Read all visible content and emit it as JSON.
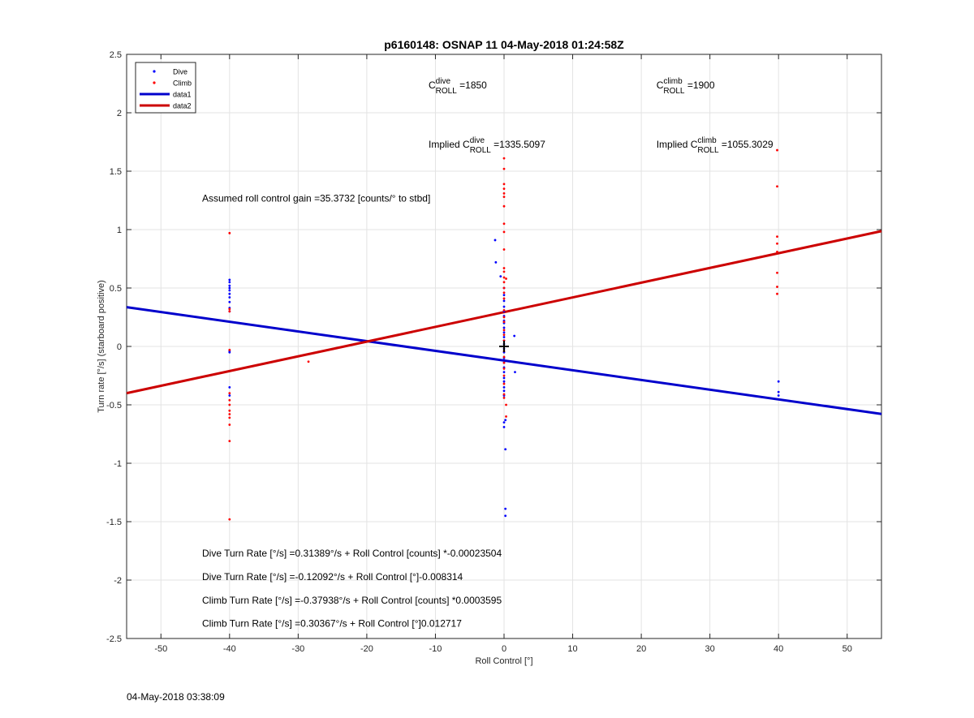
{
  "chart_data": {
    "type": "scatter",
    "title": "p6160148: OSNAP 11 04-May-2018 01:24:58Z",
    "xlabel": "Roll Control [°]",
    "ylabel": "Turn rate [°/s] (starboard positive)",
    "xlim": [
      -55,
      55
    ],
    "ylim": [
      -2.5,
      2.5
    ],
    "xticks": [
      -50,
      -40,
      -30,
      -20,
      -10,
      0,
      10,
      20,
      30,
      40,
      50
    ],
    "yticks": [
      -2.5,
      -2,
      -1.5,
      -1,
      -0.5,
      0,
      0.5,
      1,
      1.5,
      2,
      2.5
    ],
    "grid": true,
    "legend_position": "top-left",
    "legend": [
      {
        "label": "Dive",
        "kind": "marker",
        "color": "#0000ff"
      },
      {
        "label": "Climb",
        "kind": "marker",
        "color": "#ff0000"
      },
      {
        "label": "data1",
        "kind": "line",
        "color": "#0000cc"
      },
      {
        "label": "data2",
        "kind": "line",
        "color": "#cc0000"
      }
    ],
    "series": [
      {
        "name": "Dive",
        "color": "#0000ff",
        "points": [
          [
            -40,
            0.57
          ],
          [
            -40,
            0.55
          ],
          [
            -40,
            0.52
          ],
          [
            -40,
            0.5
          ],
          [
            -40,
            0.48
          ],
          [
            -40,
            0.45
          ],
          [
            -40,
            0.42
          ],
          [
            -40,
            0.38
          ],
          [
            -40,
            0.33
          ],
          [
            -40,
            0.3
          ],
          [
            -40,
            -0.04
          ],
          [
            -40,
            -0.05
          ],
          [
            -40,
            -0.35
          ],
          [
            -40,
            -0.42
          ],
          [
            -1.3,
            0.91
          ],
          [
            -1.2,
            0.72
          ],
          [
            -0.5,
            0.6
          ],
          [
            0,
            0.5
          ],
          [
            0,
            0.44
          ],
          [
            0,
            0.39
          ],
          [
            0,
            0.34
          ],
          [
            0,
            0.3
          ],
          [
            0,
            0.26
          ],
          [
            0,
            0.22
          ],
          [
            0,
            0.2
          ],
          [
            0,
            0.16
          ],
          [
            0,
            0.12
          ],
          [
            0,
            0.08
          ],
          [
            0,
            0.05
          ],
          [
            0,
            0.02
          ],
          [
            0,
            -0.02
          ],
          [
            0,
            -0.05
          ],
          [
            0,
            -0.1
          ],
          [
            0,
            -0.14
          ],
          [
            0,
            -0.18
          ],
          [
            0,
            -0.22
          ],
          [
            0,
            -0.27
          ],
          [
            0,
            -0.3
          ],
          [
            0,
            -0.35
          ],
          [
            0,
            -0.38
          ],
          [
            0,
            -0.42
          ],
          [
            0,
            -0.65
          ],
          [
            0,
            -0.69
          ],
          [
            0.2,
            -0.63
          ],
          [
            0.2,
            -0.88
          ],
          [
            0.2,
            -1.39
          ],
          [
            0.2,
            -1.45
          ],
          [
            1.5,
            0.09
          ],
          [
            1.6,
            -0.22
          ],
          [
            40,
            -0.3
          ],
          [
            40,
            -0.39
          ],
          [
            40,
            -0.42
          ]
        ]
      },
      {
        "name": "Climb",
        "color": "#ff0000",
        "points": [
          [
            -40,
            0.97
          ],
          [
            -40,
            0.32
          ],
          [
            -40,
            0.3
          ],
          [
            -40,
            -0.03
          ],
          [
            -40,
            -0.4
          ],
          [
            -40,
            -0.46
          ],
          [
            -40,
            -0.5
          ],
          [
            -40,
            -0.55
          ],
          [
            -40,
            -0.58
          ],
          [
            -40,
            -0.61
          ],
          [
            -40,
            -0.67
          ],
          [
            -40,
            -0.81
          ],
          [
            -40,
            -1.48
          ],
          [
            -28.5,
            -0.13
          ],
          [
            0,
            1.61
          ],
          [
            0,
            1.52
          ],
          [
            0,
            1.39
          ],
          [
            0,
            1.35
          ],
          [
            0,
            1.31
          ],
          [
            0,
            1.28
          ],
          [
            0,
            1.2
          ],
          [
            0,
            1.05
          ],
          [
            0,
            0.98
          ],
          [
            0,
            0.83
          ],
          [
            0,
            0.67
          ],
          [
            0,
            0.64
          ],
          [
            0,
            0.59
          ],
          [
            0,
            0.55
          ],
          [
            0,
            0.5
          ],
          [
            0,
            0.46
          ],
          [
            0,
            0.41
          ],
          [
            0,
            0.31
          ],
          [
            0,
            0.25
          ],
          [
            0,
            0.21
          ],
          [
            0,
            0.14
          ],
          [
            0,
            0.1
          ],
          [
            0,
            0.05
          ],
          [
            0,
            -0.04
          ],
          [
            0,
            -0.09
          ],
          [
            0,
            -0.14
          ],
          [
            0,
            -0.19
          ],
          [
            0,
            -0.25
          ],
          [
            0,
            -0.32
          ],
          [
            0,
            -0.41
          ],
          [
            0,
            -0.44
          ],
          [
            0.3,
            0.58
          ],
          [
            0.3,
            -0.5
          ],
          [
            0.3,
            -0.6
          ],
          [
            39.8,
            1.68
          ],
          [
            39.8,
            1.37
          ],
          [
            39.8,
            0.94
          ],
          [
            39.8,
            0.88
          ],
          [
            39.8,
            0.81
          ],
          [
            39.8,
            0.63
          ],
          [
            39.8,
            0.51
          ],
          [
            39.8,
            0.45
          ]
        ]
      },
      {
        "name": "data1",
        "color": "#0000cc",
        "line": [
          [
            -55,
            0.336
          ],
          [
            55,
            -0.578
          ]
        ]
      },
      {
        "name": "data2",
        "color": "#cc0000",
        "line": [
          [
            -55,
            -0.4
          ],
          [
            55,
            0.987
          ]
        ]
      }
    ],
    "marker": [
      0,
      0
    ],
    "annotations": [
      {
        "id": "c-dive",
        "base": "C",
        "sup": "dive",
        "sub": "ROLL",
        "suffix": " =1850",
        "x": -11,
        "y": 2.21
      },
      {
        "id": "c-climb",
        "base": "C",
        "sup": "climb",
        "sub": "ROLL",
        "suffix": " =1900",
        "x": 22.2,
        "y": 2.21
      },
      {
        "id": "implied-dive",
        "prefix": "Implied ",
        "base": "C",
        "sup": "dive",
        "sub": "ROLL",
        "suffix": " =1335.5097",
        "x": -11,
        "y": 1.7
      },
      {
        "id": "implied-climb",
        "prefix": "Implied ",
        "base": "C",
        "sup": "climb",
        "sub": "ROLL",
        "suffix": " =1055.3029",
        "x": 22.2,
        "y": 1.7
      },
      {
        "id": "gain",
        "text": "Assumed roll control gain =35.3732 [counts/° to stbd]",
        "x": -44,
        "y": 1.24
      },
      {
        "id": "eq1",
        "text": "Dive Turn Rate [°/s] =0.31389°/s + Roll Control [counts] *-0.00023504",
        "x": -44,
        "y": -1.8
      },
      {
        "id": "eq2",
        "text": "Dive Turn Rate [°/s] =-0.12092°/s + Roll Control [°]-0.008314",
        "x": -44,
        "y": -2.0
      },
      {
        "id": "eq3",
        "text": "Climb Turn Rate [°/s] =-0.37938°/s + Roll Control [counts] *0.0003595",
        "x": -44,
        "y": -2.2
      },
      {
        "id": "eq4",
        "text": "Climb Turn Rate [°/s] =0.30367°/s + Roll Control [°]0.012717",
        "x": -44,
        "y": -2.4
      }
    ]
  },
  "footer": {
    "timestamp": "04-May-2018 03:38:09"
  }
}
